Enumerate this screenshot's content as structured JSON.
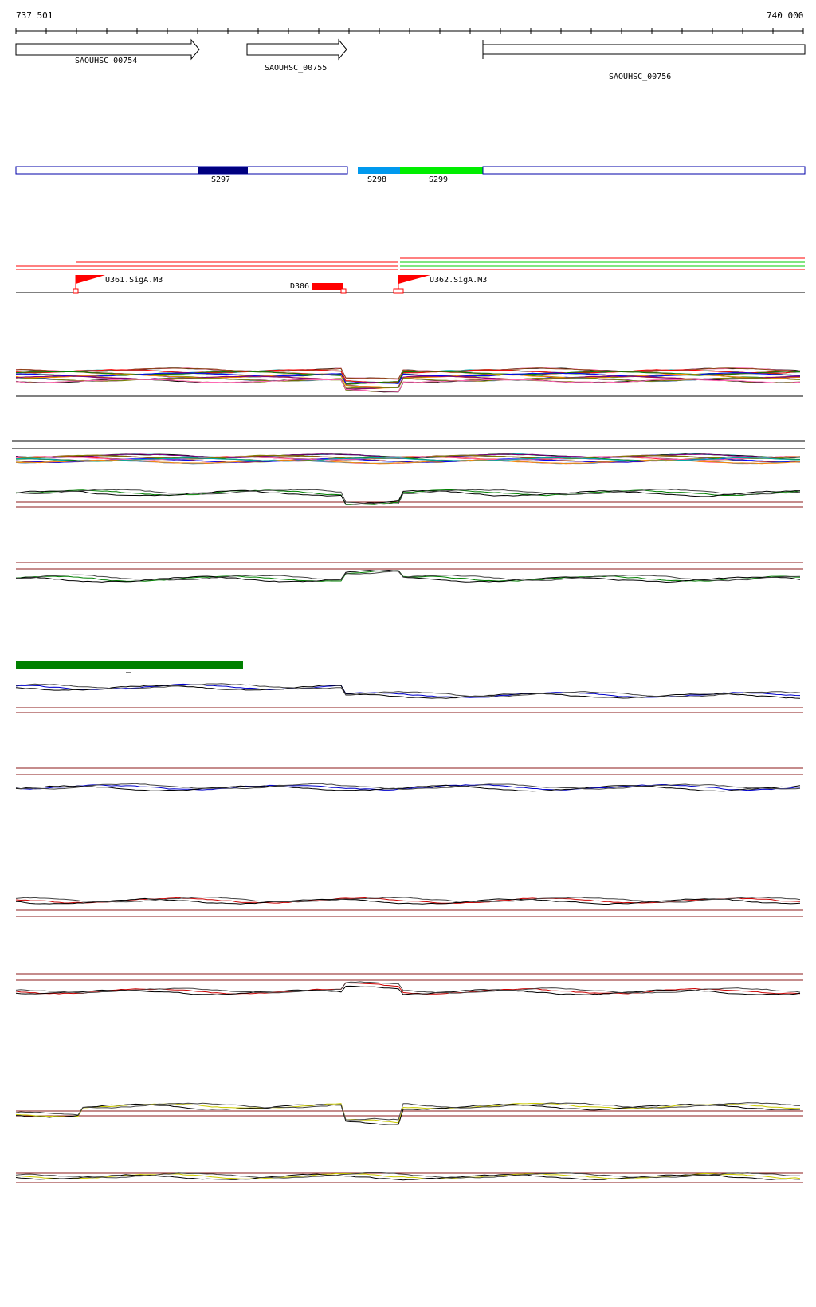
{
  "coordinates": {
    "start": "737 501",
    "end": "740 000"
  },
  "genes": [
    {
      "id": "SAOUHSC_00754",
      "strand": "+"
    },
    {
      "id": "SAOUHSC_00755",
      "strand": "+"
    },
    {
      "id": "SAOUHSC_00756",
      "strand": "+"
    }
  ],
  "segments": [
    {
      "id": "S297",
      "color": "#000080"
    },
    {
      "id": "S298",
      "color": "#0099ee"
    },
    {
      "id": "S299",
      "color": "#00ee00"
    }
  ],
  "features": [
    {
      "id": "U361.SigA.M3",
      "kind": "promoter"
    },
    {
      "id": "D306",
      "kind": "terminator"
    },
    {
      "id": "U362.SigA.M3",
      "kind": "promoter"
    }
  ],
  "colors": {
    "gene_outline": "#000000",
    "segment_outline": "#0000aa",
    "promoter": "#ff0000",
    "track_baseline": "#8b1a1a",
    "highlight_bar": "#008000"
  }
}
